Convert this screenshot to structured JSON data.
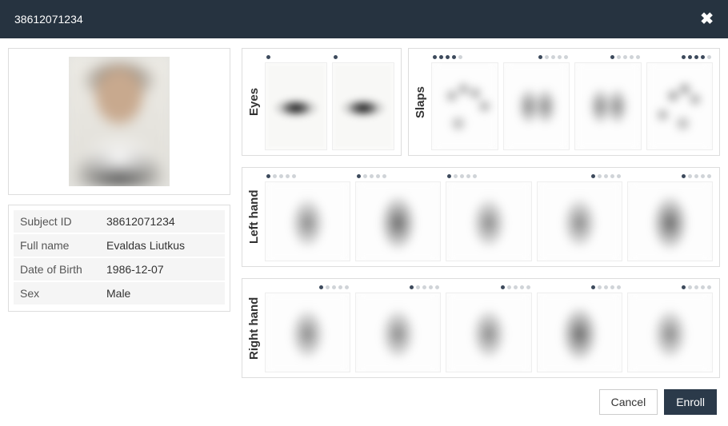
{
  "header": {
    "title": "38612071234",
    "close_icon": "✖"
  },
  "subject": {
    "fields": [
      {
        "label": "Subject ID",
        "value": "38612071234"
      },
      {
        "label": "Full name",
        "value": "Evaldas Liutkus"
      },
      {
        "label": "Date of Birth",
        "value": "1986-12-07"
      },
      {
        "label": "Sex",
        "value": "Male"
      }
    ]
  },
  "biometrics": {
    "eyes": {
      "label": "Eyes",
      "items": [
        {
          "quality": 1,
          "max": 1,
          "align": "left",
          "kind": "iris"
        },
        {
          "quality": 1,
          "max": 1,
          "align": "left",
          "kind": "iris"
        }
      ]
    },
    "slaps": {
      "label": "Slaps",
      "items": [
        {
          "quality": 4,
          "max": 5,
          "align": "left",
          "kind": "slap1"
        },
        {
          "quality": 1,
          "max": 5,
          "align": "right",
          "kind": "slap2"
        },
        {
          "quality": 1,
          "max": 5,
          "align": "right",
          "kind": "slap2"
        },
        {
          "quality": 4,
          "max": 5,
          "align": "right",
          "kind": "slap3"
        }
      ]
    },
    "left_hand": {
      "label": "Left hand",
      "items": [
        {
          "quality": 1,
          "max": 5,
          "align": "left",
          "kind": "fp"
        },
        {
          "quality": 1,
          "max": 5,
          "align": "left",
          "kind": "fp dark"
        },
        {
          "quality": 1,
          "max": 5,
          "align": "left",
          "kind": "fp"
        },
        {
          "quality": 1,
          "max": 5,
          "align": "right",
          "kind": "fp"
        },
        {
          "quality": 1,
          "max": 5,
          "align": "right",
          "kind": "fp dark"
        }
      ]
    },
    "right_hand": {
      "label": "Right hand",
      "items": [
        {
          "quality": 1,
          "max": 5,
          "align": "right",
          "kind": "fp"
        },
        {
          "quality": 1,
          "max": 5,
          "align": "right",
          "kind": "fp"
        },
        {
          "quality": 1,
          "max": 5,
          "align": "right",
          "kind": "fp"
        },
        {
          "quality": 1,
          "max": 5,
          "align": "right",
          "kind": "fp dark"
        },
        {
          "quality": 1,
          "max": 5,
          "align": "right",
          "kind": "fp"
        }
      ]
    }
  },
  "footer": {
    "cancel": "Cancel",
    "enroll": "Enroll"
  },
  "style": {
    "header_bg": "#263340",
    "panel_border": "#dddddd",
    "dot_off": "#d0d4d8",
    "dot_on": "#3d4a5c",
    "btn_primary_bg": "#2b3a4a"
  }
}
